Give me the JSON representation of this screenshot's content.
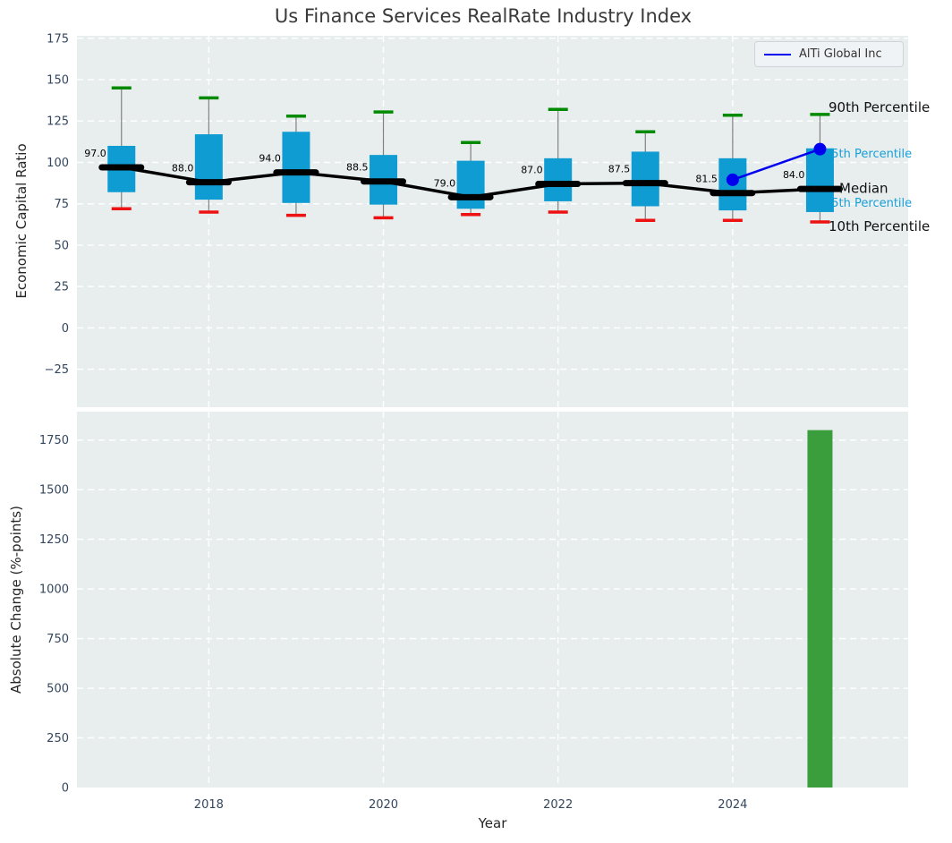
{
  "title": "Us Finance Services RealRate Industry Index",
  "legend": {
    "label": "AlTi Global Inc"
  },
  "colors": {
    "panel_bg": "#e8edee",
    "grid": "#ffffff",
    "box_fill": "#0f9cd3",
    "whisker": "#808080",
    "p90_cap": "#008a00",
    "p10_cap": "#ee1111",
    "median_line": "#000000",
    "alti_line": "#0000ee",
    "bar_fill": "#3a9e3c",
    "tick_label": "#33475e",
    "cyan_label": "#18a0d8",
    "black_label": "#111111"
  },
  "chart_data": [
    {
      "type": "boxplot",
      "title": "Us Finance Services RealRate Industry Index",
      "xlabel": "Year",
      "ylabel": "Economic Capital Ratio",
      "xlim": [
        2016.49,
        2026.01
      ],
      "ylim": [
        -47.9,
        176.5
      ],
      "yticks": [
        175,
        150,
        125,
        100,
        75,
        50,
        25,
        0,
        -25
      ],
      "xticks": [
        2018,
        2020,
        2022,
        2024
      ],
      "grid": true,
      "legend_position": "upper right",
      "categories": [
        2017,
        2018,
        2019,
        2020,
        2021,
        2022,
        2023,
        2024,
        2025
      ],
      "boxes": {
        "p90": [
          145,
          139,
          128,
          130.5,
          112,
          132,
          118.5,
          128.5,
          129
        ],
        "q3": [
          110,
          117,
          118.5,
          104.5,
          101,
          102.5,
          106.5,
          102.5,
          108.5
        ],
        "median": [
          97,
          88,
          94,
          88.5,
          79,
          87,
          87.5,
          81.5,
          84
        ],
        "q1": [
          82,
          77.5,
          75.5,
          74.5,
          72,
          76.5,
          73.5,
          71,
          70
        ],
        "p10": [
          72,
          70,
          68,
          66.5,
          68.5,
          70,
          65,
          65,
          64
        ]
      },
      "median_annotations": [
        "97.0",
        "88.0",
        "94.0",
        "88.5",
        "79.0",
        "87.0",
        "87.5",
        "81.5",
        "84.0"
      ],
      "series": [
        {
          "name": "AlTi Global Inc",
          "x": [
            2024,
            2025
          ],
          "y": [
            89.5,
            108
          ],
          "color": "#0000ee"
        }
      ],
      "right_labels": [
        {
          "text": "90th Percentile",
          "style": "black"
        },
        {
          "text": "75th Percentile",
          "style": "cyan"
        },
        {
          "text": "Median",
          "style": "black"
        },
        {
          "text": "25th Percentile",
          "style": "cyan"
        },
        {
          "text": "10th Percentile",
          "style": "black"
        }
      ]
    },
    {
      "type": "bar",
      "xlabel": "Year",
      "ylabel": "Absolute Change (%-points)",
      "ylim": [
        0,
        1893
      ],
      "yticks": [
        1750,
        1500,
        1250,
        1000,
        750,
        500,
        250,
        0
      ],
      "xticks": [
        2018,
        2020,
        2022,
        2024
      ],
      "grid": true,
      "bars": [
        {
          "x": 2025,
          "value": 1800
        }
      ]
    }
  ]
}
